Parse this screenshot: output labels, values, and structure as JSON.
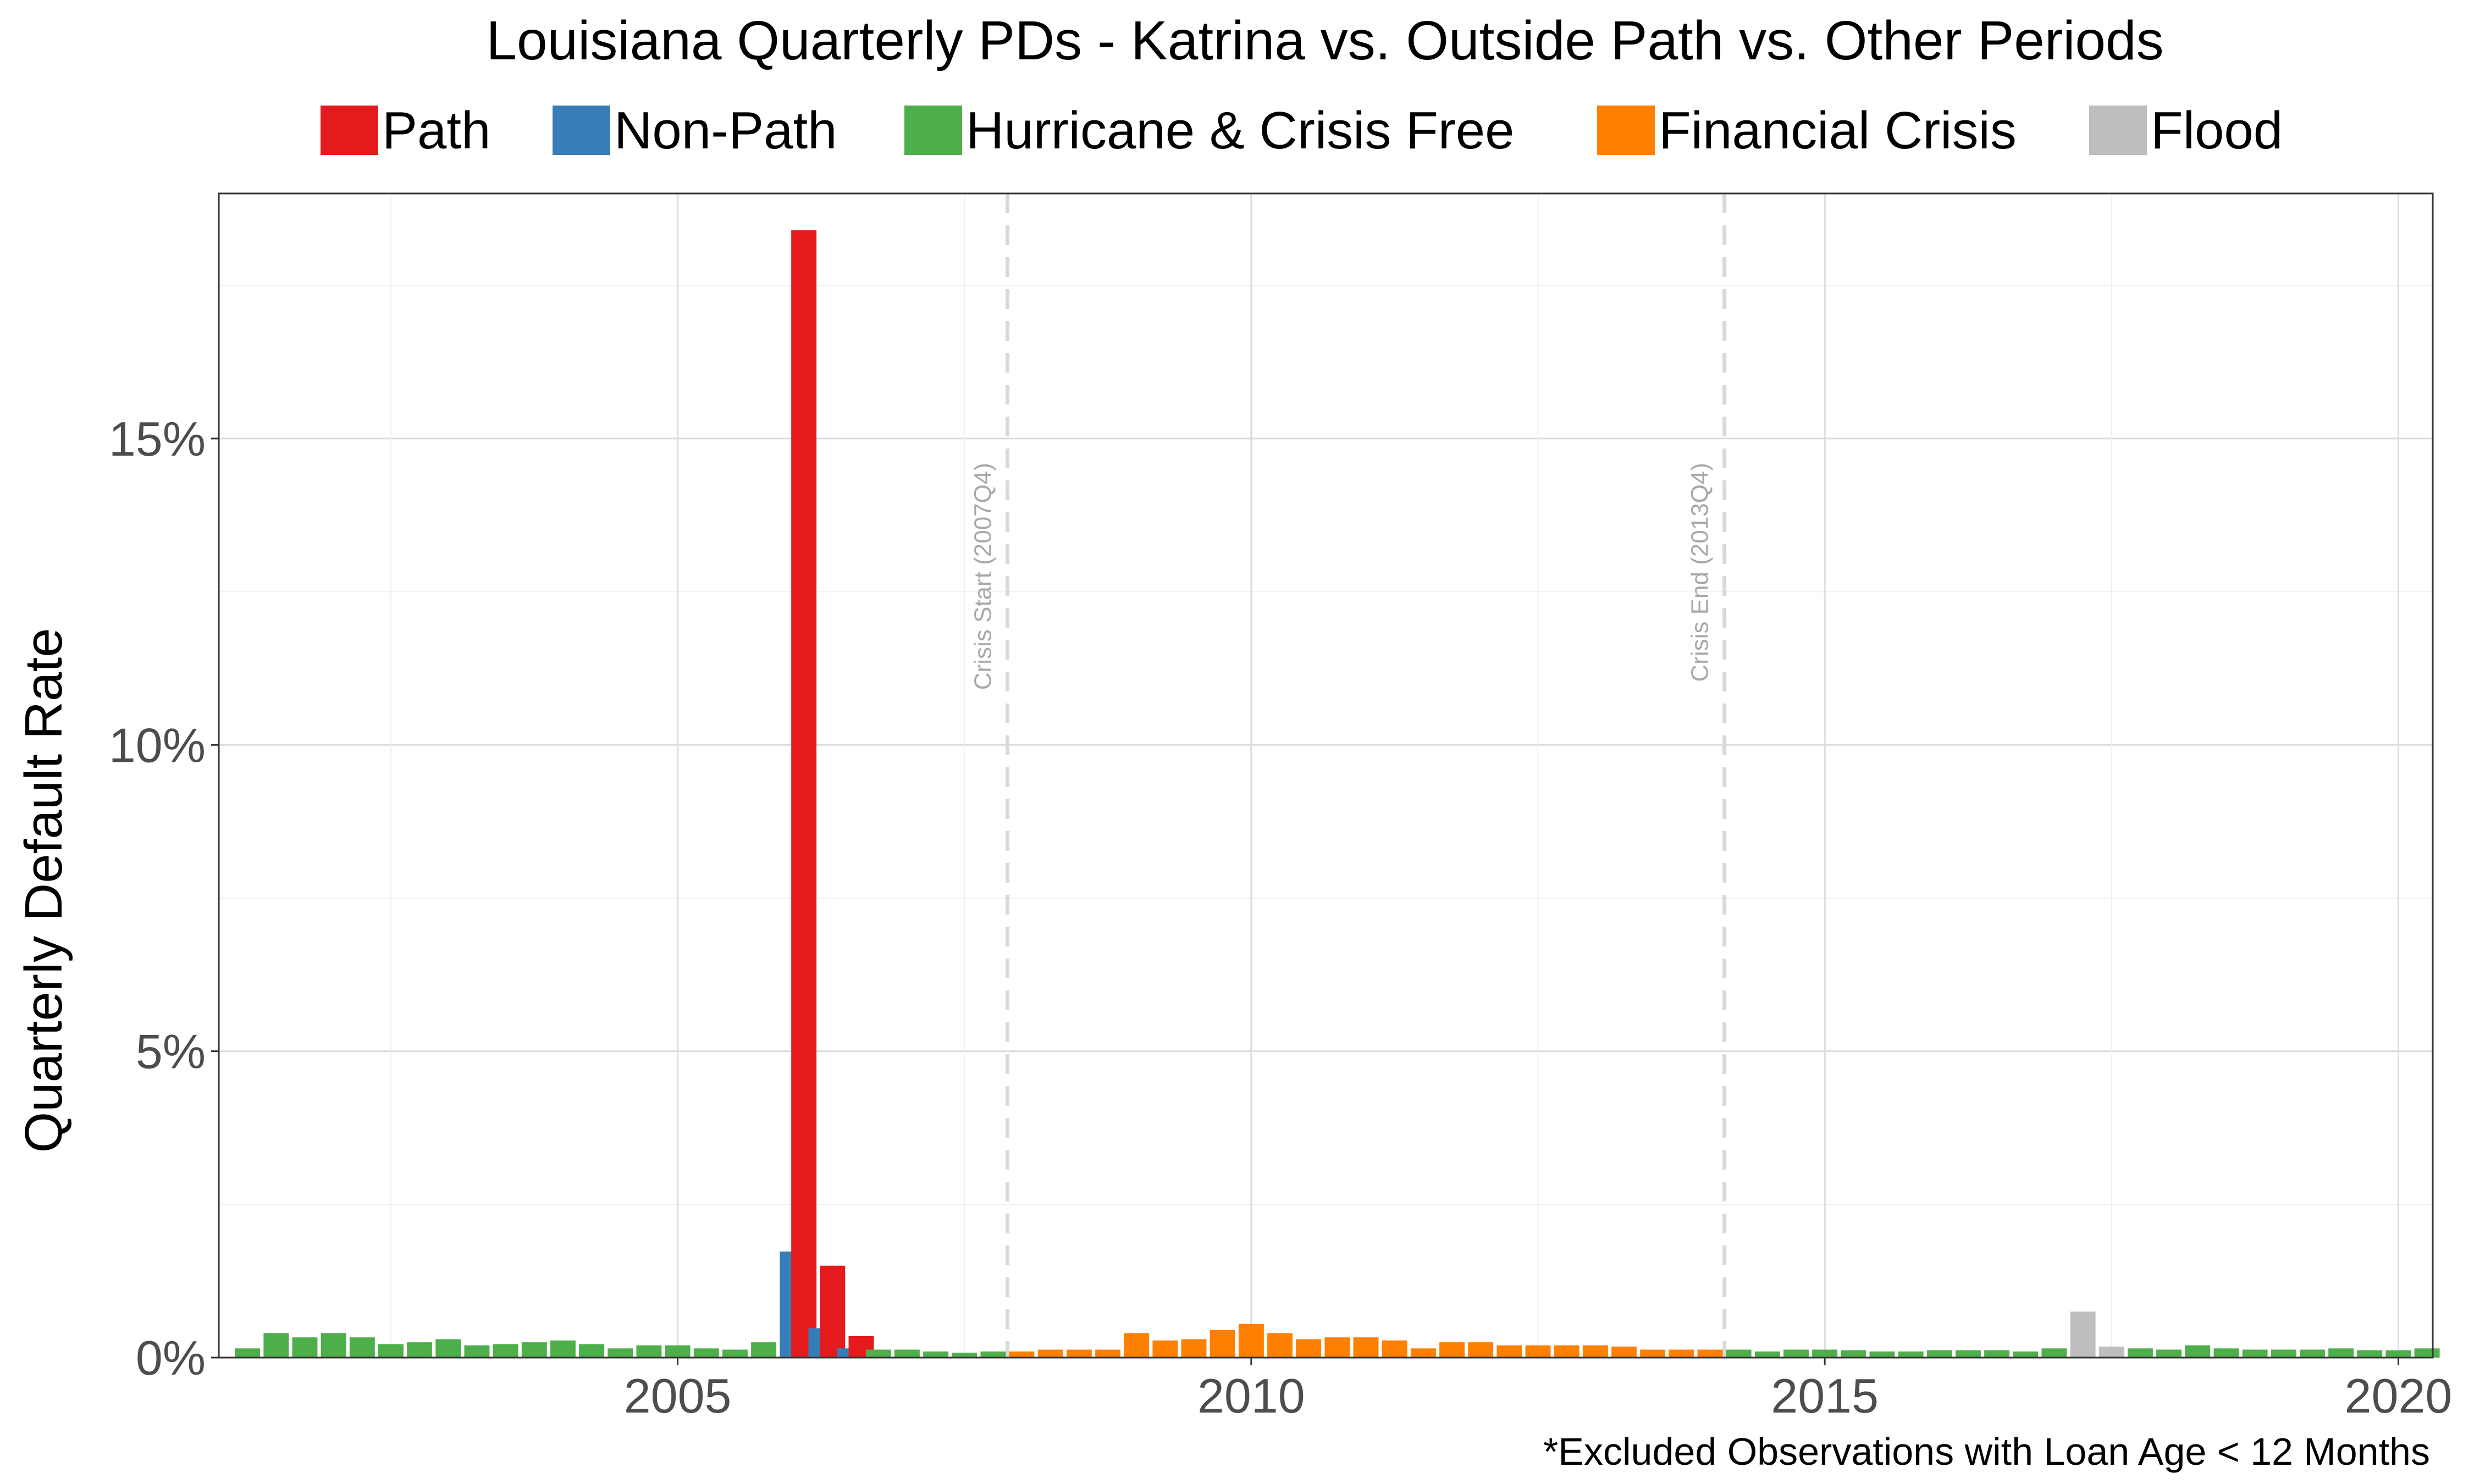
{
  "chart_data": {
    "type": "bar",
    "title": "Louisiana Quarterly PDs - Katrina vs. Outside Path vs. Other Periods",
    "ylabel": "Quarterly Default Rate",
    "xlabel": "",
    "note": "*Excluded Observations with Loan Age < 12 Months",
    "x_range": [
      2001.0,
      2020.3
    ],
    "ylim": [
      0,
      0.19
    ],
    "x_ticks": [
      {
        "value": 2005,
        "label": "2005"
      },
      {
        "value": 2010,
        "label": "2010"
      },
      {
        "value": 2015,
        "label": "2015"
      },
      {
        "value": 2020,
        "label": "2020"
      }
    ],
    "y_ticks": [
      {
        "value": 0,
        "label": "0%"
      },
      {
        "value": 0.05,
        "label": "5%"
      },
      {
        "value": 0.1,
        "label": "10%"
      },
      {
        "value": 0.15,
        "label": "15%"
      }
    ],
    "legend_position": "top",
    "legend": [
      {
        "key": "path",
        "label": "Path",
        "color": "#e41a1c"
      },
      {
        "key": "nonpath",
        "label": "Non-Path",
        "color": "#377eb8"
      },
      {
        "key": "free",
        "label": "Hurricane & Crisis Free",
        "color": "#4daf4a"
      },
      {
        "key": "crisis",
        "label": "Financial Crisis",
        "color": "#ff7f00"
      },
      {
        "key": "flood",
        "label": "Flood",
        "color": "#bebebe"
      }
    ],
    "vlines": [
      {
        "x": 2007.875,
        "label": "Crisis Start (2007Q4)"
      },
      {
        "x": 2014.125,
        "label": "Crisis End (2013Q4)"
      }
    ],
    "bars": [
      {
        "x": 2001.25,
        "y": 0.0015,
        "group": "free"
      },
      {
        "x": 2001.5,
        "y": 0.004,
        "group": "free"
      },
      {
        "x": 2001.75,
        "y": 0.0033,
        "group": "free"
      },
      {
        "x": 2002.0,
        "y": 0.004,
        "group": "free"
      },
      {
        "x": 2002.25,
        "y": 0.0033,
        "group": "free"
      },
      {
        "x": 2002.5,
        "y": 0.0022,
        "group": "free"
      },
      {
        "x": 2002.75,
        "y": 0.0025,
        "group": "free"
      },
      {
        "x": 2003.0,
        "y": 0.003,
        "group": "free"
      },
      {
        "x": 2003.25,
        "y": 0.002,
        "group": "free"
      },
      {
        "x": 2003.5,
        "y": 0.0022,
        "group": "free"
      },
      {
        "x": 2003.75,
        "y": 0.0025,
        "group": "free"
      },
      {
        "x": 2004.0,
        "y": 0.0028,
        "group": "free"
      },
      {
        "x": 2004.25,
        "y": 0.0022,
        "group": "free"
      },
      {
        "x": 2004.5,
        "y": 0.0015,
        "group": "free"
      },
      {
        "x": 2004.75,
        "y": 0.002,
        "group": "free"
      },
      {
        "x": 2005.0,
        "y": 0.002,
        "group": "free"
      },
      {
        "x": 2005.25,
        "y": 0.0015,
        "group": "free"
      },
      {
        "x": 2005.5,
        "y": 0.0013,
        "group": "free"
      },
      {
        "x": 2005.75,
        "y": 0.0025,
        "group": "free"
      },
      {
        "x": 2006.0,
        "y": 0.0173,
        "group": "nonpath"
      },
      {
        "x": 2006.1,
        "y": 0.184,
        "group": "path"
      },
      {
        "x": 2006.25,
        "y": 0.0048,
        "group": "nonpath"
      },
      {
        "x": 2006.35,
        "y": 0.015,
        "group": "path"
      },
      {
        "x": 2006.5,
        "y": 0.0015,
        "group": "nonpath"
      },
      {
        "x": 2006.6,
        "y": 0.0035,
        "group": "path"
      },
      {
        "x": 2006.75,
        "y": 0.0013,
        "group": "free"
      },
      {
        "x": 2007.0,
        "y": 0.0013,
        "group": "free"
      },
      {
        "x": 2007.25,
        "y": 0.001,
        "group": "free"
      },
      {
        "x": 2007.5,
        "y": 0.0008,
        "group": "free"
      },
      {
        "x": 2007.75,
        "y": 0.001,
        "group": "free"
      },
      {
        "x": 2008.0,
        "y": 0.001,
        "group": "crisis"
      },
      {
        "x": 2008.25,
        "y": 0.0013,
        "group": "crisis"
      },
      {
        "x": 2008.5,
        "y": 0.0013,
        "group": "crisis"
      },
      {
        "x": 2008.75,
        "y": 0.0013,
        "group": "crisis"
      },
      {
        "x": 2009.0,
        "y": 0.004,
        "group": "crisis"
      },
      {
        "x": 2009.25,
        "y": 0.0028,
        "group": "crisis"
      },
      {
        "x": 2009.5,
        "y": 0.003,
        "group": "crisis"
      },
      {
        "x": 2009.75,
        "y": 0.0045,
        "group": "crisis"
      },
      {
        "x": 2010.0,
        "y": 0.0055,
        "group": "crisis"
      },
      {
        "x": 2010.25,
        "y": 0.004,
        "group": "crisis"
      },
      {
        "x": 2010.5,
        "y": 0.003,
        "group": "crisis"
      },
      {
        "x": 2010.75,
        "y": 0.0033,
        "group": "crisis"
      },
      {
        "x": 2011.0,
        "y": 0.0033,
        "group": "crisis"
      },
      {
        "x": 2011.25,
        "y": 0.0028,
        "group": "crisis"
      },
      {
        "x": 2011.5,
        "y": 0.0015,
        "group": "crisis"
      },
      {
        "x": 2011.75,
        "y": 0.0025,
        "group": "crisis"
      },
      {
        "x": 2012.0,
        "y": 0.0025,
        "group": "crisis"
      },
      {
        "x": 2012.25,
        "y": 0.002,
        "group": "crisis"
      },
      {
        "x": 2012.5,
        "y": 0.002,
        "group": "crisis"
      },
      {
        "x": 2012.75,
        "y": 0.002,
        "group": "crisis"
      },
      {
        "x": 2013.0,
        "y": 0.002,
        "group": "crisis"
      },
      {
        "x": 2013.25,
        "y": 0.0018,
        "group": "crisis"
      },
      {
        "x": 2013.5,
        "y": 0.0013,
        "group": "crisis"
      },
      {
        "x": 2013.75,
        "y": 0.0013,
        "group": "crisis"
      },
      {
        "x": 2014.0,
        "y": 0.0013,
        "group": "crisis"
      },
      {
        "x": 2014.25,
        "y": 0.0013,
        "group": "free"
      },
      {
        "x": 2014.5,
        "y": 0.001,
        "group": "free"
      },
      {
        "x": 2014.75,
        "y": 0.0013,
        "group": "free"
      },
      {
        "x": 2015.0,
        "y": 0.0013,
        "group": "free"
      },
      {
        "x": 2015.25,
        "y": 0.0012,
        "group": "free"
      },
      {
        "x": 2015.5,
        "y": 0.001,
        "group": "free"
      },
      {
        "x": 2015.75,
        "y": 0.001,
        "group": "free"
      },
      {
        "x": 2016.0,
        "y": 0.0012,
        "group": "free"
      },
      {
        "x": 2016.25,
        "y": 0.0012,
        "group": "free"
      },
      {
        "x": 2016.5,
        "y": 0.0012,
        "group": "free"
      },
      {
        "x": 2016.75,
        "y": 0.001,
        "group": "free"
      },
      {
        "x": 2017.0,
        "y": 0.0015,
        "group": "free"
      },
      {
        "x": 2017.25,
        "y": 0.0075,
        "group": "flood"
      },
      {
        "x": 2017.5,
        "y": 0.0018,
        "group": "flood"
      },
      {
        "x": 2017.75,
        "y": 0.0015,
        "group": "free"
      },
      {
        "x": 2018.0,
        "y": 0.0013,
        "group": "free"
      },
      {
        "x": 2018.25,
        "y": 0.002,
        "group": "free"
      },
      {
        "x": 2018.5,
        "y": 0.0015,
        "group": "free"
      },
      {
        "x": 2018.75,
        "y": 0.0013,
        "group": "free"
      },
      {
        "x": 2019.0,
        "y": 0.0013,
        "group": "free"
      },
      {
        "x": 2019.25,
        "y": 0.0013,
        "group": "free"
      },
      {
        "x": 2019.5,
        "y": 0.0015,
        "group": "free"
      },
      {
        "x": 2019.75,
        "y": 0.0012,
        "group": "free"
      },
      {
        "x": 2020.0,
        "y": 0.0012,
        "group": "free"
      },
      {
        "x": 2020.25,
        "y": 0.0015,
        "group": "free"
      }
    ]
  }
}
